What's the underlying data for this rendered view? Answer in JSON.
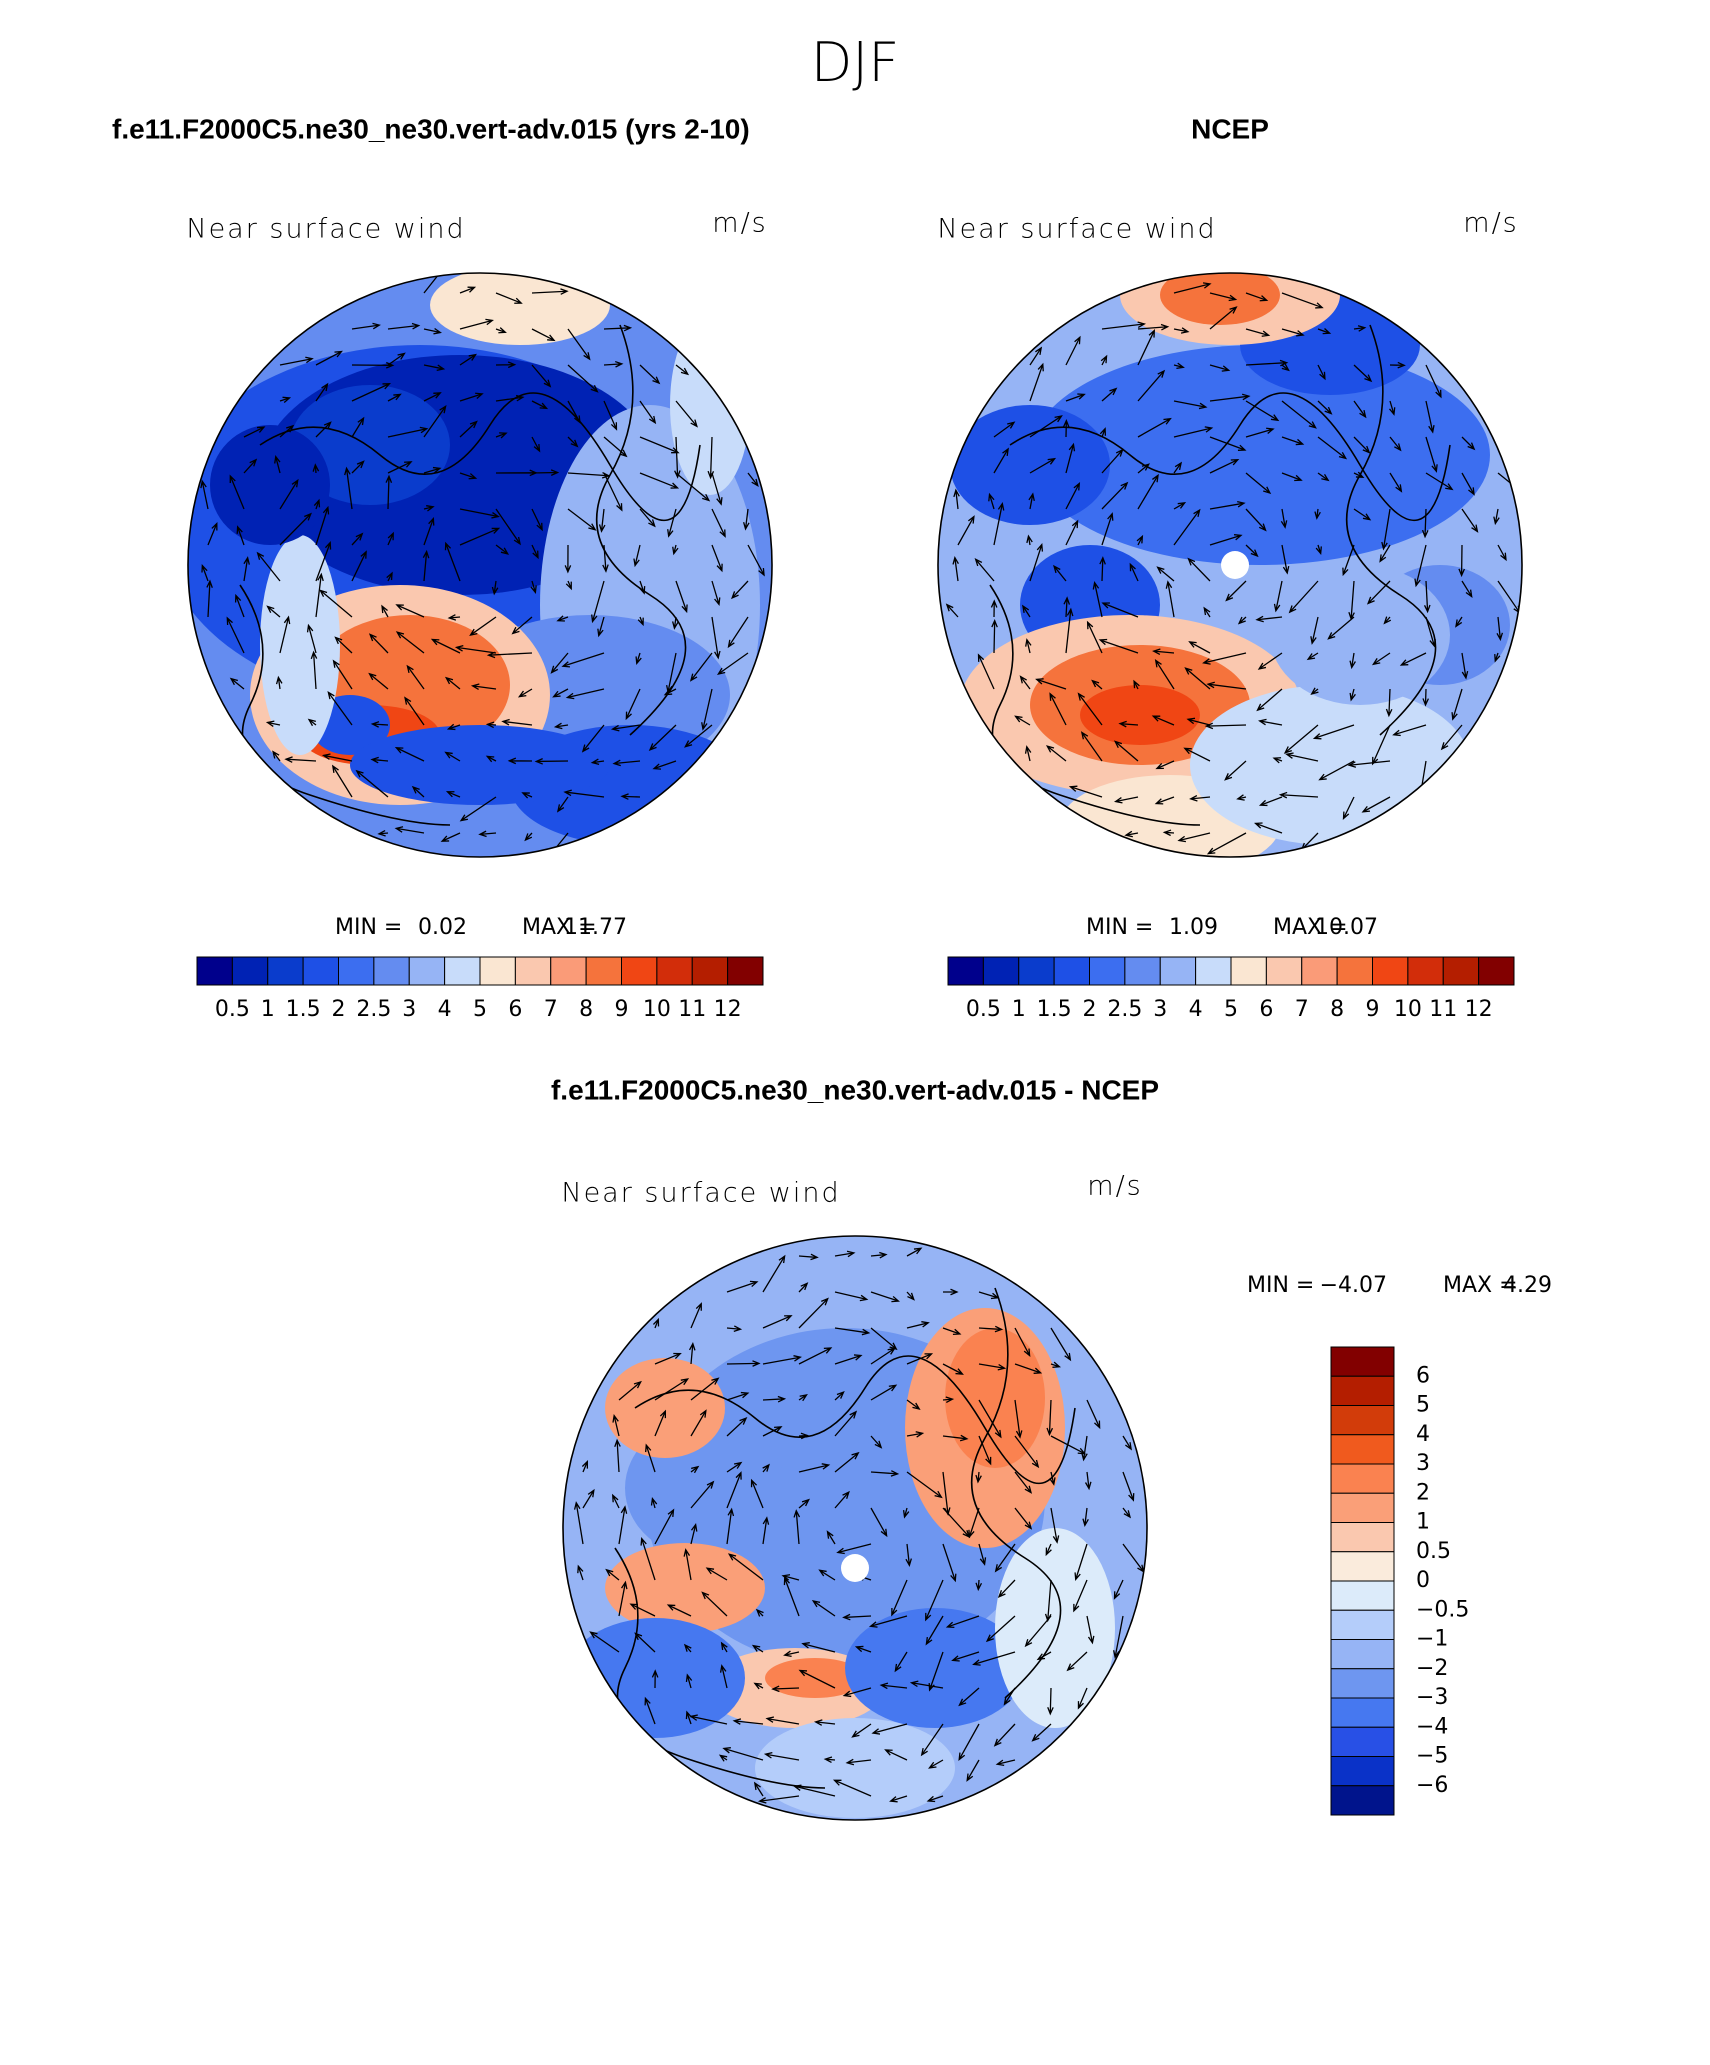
{
  "title": "DJF",
  "panels": [
    {
      "title": "f.e11.F2000C5.ne30_ne30.vert-adv.015 (yrs 2-10)",
      "subtitle": "Near surface wind",
      "units": "m/s",
      "min_label": "MIN =",
      "min": "0.02",
      "max_label": "MAX =",
      "max": "11.77",
      "colorbar": {
        "labels": [
          "0.5",
          "1",
          "1.5",
          "2",
          "2.5",
          "3",
          "4",
          "5",
          "6",
          "7",
          "8",
          "9",
          "10",
          "11",
          "12"
        ],
        "colors": [
          "#00008c",
          "#0022b4",
          "#0a3ccc",
          "#1e50e6",
          "#3c6ef0",
          "#648cf0",
          "#96b4f5",
          "#c8dcfa",
          "#fae6d2",
          "#fac8af",
          "#fa9b78",
          "#f5733c",
          "#f04614",
          "#d22d0a",
          "#b41e00",
          "#820000"
        ]
      }
    },
    {
      "title": "NCEP",
      "subtitle": "Near surface wind",
      "units": "m/s",
      "min_label": "MIN =",
      "min": "1.09",
      "max_label": "MAX =",
      "max": "10.07",
      "colorbar": {
        "labels": [
          "0.5",
          "1",
          "1.5",
          "2",
          "2.5",
          "3",
          "4",
          "5",
          "6",
          "7",
          "8",
          "9",
          "10",
          "11",
          "12"
        ],
        "colors": [
          "#00008c",
          "#0022b4",
          "#0a3ccc",
          "#1e50e6",
          "#3c6ef0",
          "#648cf0",
          "#96b4f5",
          "#c8dcfa",
          "#fae6d2",
          "#fac8af",
          "#fa9b78",
          "#f5733c",
          "#f04614",
          "#d22d0a",
          "#b41e00",
          "#820000"
        ]
      }
    },
    {
      "title": "f.e11.F2000C5.ne30_ne30.vert-adv.015 - NCEP",
      "subtitle": "Near surface wind",
      "units": "m/s",
      "min_label": "MIN =",
      "min": "−4.07",
      "max_label": "MAX =",
      "max": "4.29",
      "colorbar": {
        "labels": [
          "6",
          "5",
          "4",
          "3",
          "2",
          "1",
          "0.5",
          "0",
          "−0.5",
          "−1",
          "−2",
          "−3",
          "−4",
          "−5",
          "−6"
        ],
        "colors": [
          "#820000",
          "#b41e00",
          "#d23c0a",
          "#f05a1e",
          "#fa8250",
          "#fa9f78",
          "#fac8af",
          "#faebdc",
          "#dcebfa",
          "#b4cdfa",
          "#96b4f5",
          "#6e96f0",
          "#4678f0",
          "#2850e6",
          "#0a32c8",
          "#00148c"
        ]
      }
    }
  ]
}
